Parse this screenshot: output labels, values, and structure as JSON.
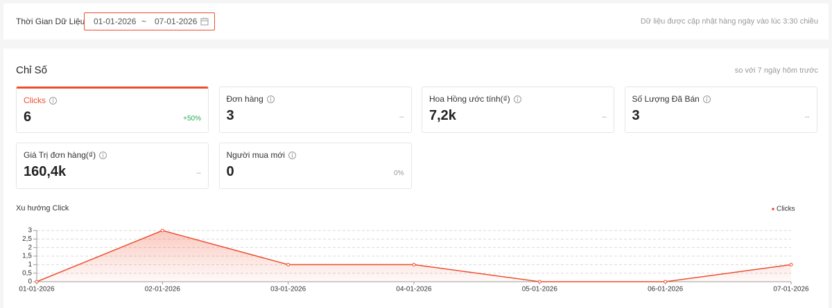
{
  "header": {
    "label": "Thời Gian Dữ Liệu",
    "start_date": "01-01-2026",
    "separator": "~",
    "end_date": "07-01-2026",
    "update_note": "Dữ liệu được cập nhật hàng ngày vào lúc 3:30 chiều"
  },
  "metrics_section": {
    "title": "Chỉ Số",
    "comparison": "so với 7 ngày hôm trước",
    "cards": [
      {
        "label": "Clicks",
        "value": "6",
        "change": "+50%",
        "active": true
      },
      {
        "label": "Đơn hàng",
        "value": "3",
        "change": "--"
      },
      {
        "label": "Hoa Hồng ước tính(₫)",
        "value": "7,2k",
        "change": "--"
      },
      {
        "label": "Số Lượng Đã Bán",
        "value": "3",
        "change": "--"
      },
      {
        "label": "Giá Trị đơn hàng(₫)",
        "value": "160,4k",
        "change": "--"
      },
      {
        "label": "Người mua mới",
        "value": "0",
        "change": "0%"
      }
    ]
  },
  "chart_data": {
    "type": "line",
    "title": "Xu hướng Click",
    "categories": [
      "01-01-2026",
      "02-01-2026",
      "03-01-2026",
      "04-01-2026",
      "05-01-2026",
      "06-01-2026",
      "07-01-2026"
    ],
    "series": [
      {
        "name": "Clicks",
        "color": "#ee4d2d",
        "values": [
          0,
          3,
          1,
          1,
          0,
          0,
          1
        ]
      }
    ],
    "ylim": [
      0,
      3
    ],
    "yticks": [
      0,
      {
        "value": 0.5,
        "label": "0,5"
      },
      1,
      {
        "value": 1.5,
        "label": "1,5"
      },
      2,
      {
        "value": 2.5,
        "label": "2,5"
      },
      3
    ],
    "grid": true,
    "legend": "top-right"
  }
}
